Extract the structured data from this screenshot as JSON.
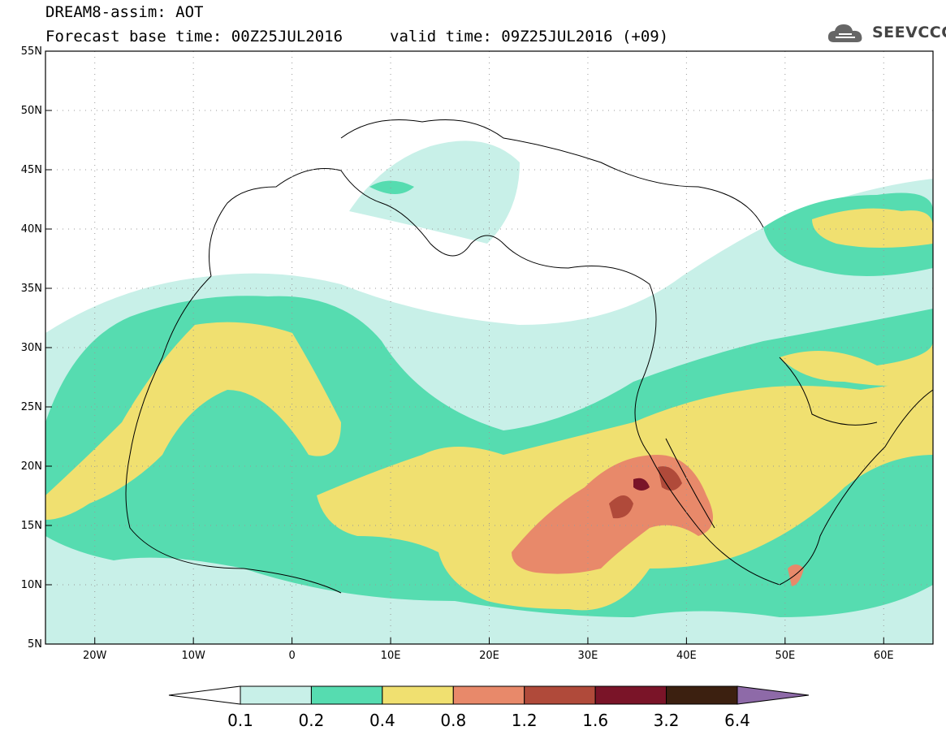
{
  "header": {
    "title": "DREAM8-assim: AOT",
    "base_time": "Forecast base time: 00Z25JUL2016",
    "valid_time": "valid time: 09Z25JUL2016 (+09)",
    "logo_text": "SEEVCCC"
  },
  "axes": {
    "lat_ticks": [
      "55N",
      "50N",
      "45N",
      "40N",
      "35N",
      "30N",
      "25N",
      "20N",
      "15N",
      "10N",
      "5N"
    ],
    "lon_ticks": [
      "20W",
      "10W",
      "0",
      "10E",
      "20E",
      "30E",
      "40E",
      "50E",
      "60E"
    ],
    "lat_range": [
      5,
      55
    ],
    "lon_range": [
      -25,
      65
    ]
  },
  "legend": {
    "levels": [
      "0.1",
      "0.2",
      "0.4",
      "0.8",
      "1.2",
      "1.6",
      "3.2",
      "6.4"
    ],
    "colors": [
      "#c8f0e8",
      "#56dcb0",
      "#f0e070",
      "#e8896a",
      "#b04a3a",
      "#7a1428",
      "#3c2010",
      "#8e6aa8"
    ]
  }
}
